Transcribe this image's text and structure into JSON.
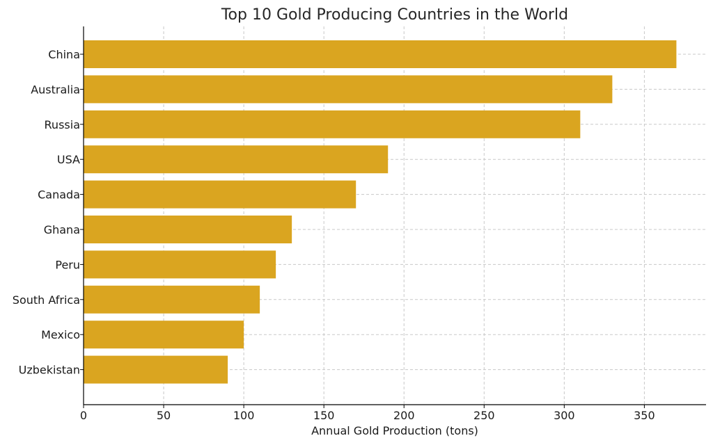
{
  "chart_data": {
    "type": "bar",
    "orientation": "horizontal",
    "title": "Top 10 Gold Producing Countries in the World",
    "xlabel": "Annual Gold Production (tons)",
    "ylabel": "",
    "categories": [
      "China",
      "Australia",
      "Russia",
      "USA",
      "Canada",
      "Ghana",
      "Peru",
      "South Africa",
      "Mexico",
      "Uzbekistan"
    ],
    "values": [
      370,
      330,
      310,
      190,
      170,
      130,
      120,
      110,
      100,
      90
    ],
    "xlim": [
      0,
      388.5
    ],
    "xticks": [
      0,
      50,
      100,
      150,
      200,
      250,
      300,
      350
    ],
    "grid": true,
    "bar_color": "#DAA520"
  }
}
